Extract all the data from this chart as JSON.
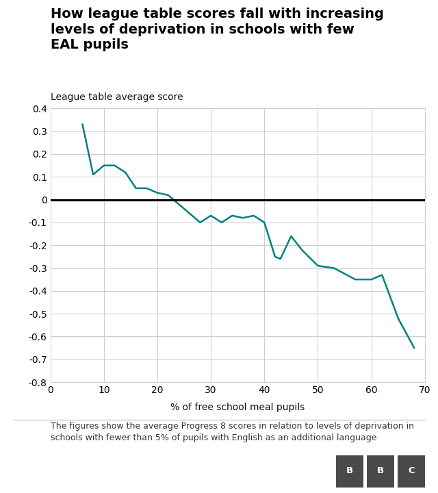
{
  "title": "How league table scores fall with increasing\nlevels of deprivation in schools with few\nEAL pupils",
  "ylabel": "League table average score",
  "xlabel": "% of free school meal pupils",
  "footnote": "The figures show the average Progress 8 scores in relation to levels of deprivation in\nschools with fewer than 5% of pupils with English as an additional language",
  "line_color": "#008080",
  "zero_line_color": "#000000",
  "background_color": "#ffffff",
  "grid_color": "#cccccc",
  "xlim": [
    0,
    70
  ],
  "ylim": [
    -0.8,
    0.4
  ],
  "xticks": [
    0,
    10,
    20,
    30,
    40,
    50,
    60,
    70
  ],
  "yticks": [
    -0.8,
    -0.7,
    -0.6,
    -0.5,
    -0.4,
    -0.3,
    -0.2,
    -0.1,
    0.0,
    0.1,
    0.2,
    0.3,
    0.4
  ],
  "x": [
    6,
    8,
    10,
    12,
    14,
    16,
    18,
    20,
    22,
    24,
    26,
    28,
    30,
    32,
    34,
    36,
    38,
    40,
    42,
    43,
    45,
    47,
    50,
    53,
    57,
    60,
    62,
    65,
    68
  ],
  "y": [
    0.33,
    0.11,
    0.15,
    0.15,
    0.12,
    0.05,
    0.05,
    0.03,
    0.02,
    -0.02,
    -0.06,
    -0.1,
    -0.07,
    -0.1,
    -0.07,
    -0.08,
    -0.07,
    -0.1,
    -0.25,
    -0.26,
    -0.16,
    -0.22,
    -0.29,
    -0.3,
    -0.35,
    -0.35,
    -0.33,
    -0.52,
    -0.65
  ],
  "line_width": 1.8,
  "title_fontsize": 14,
  "ylabel_fontsize": 10,
  "xlabel_fontsize": 10,
  "tick_fontsize": 10,
  "footnote_fontsize": 9
}
